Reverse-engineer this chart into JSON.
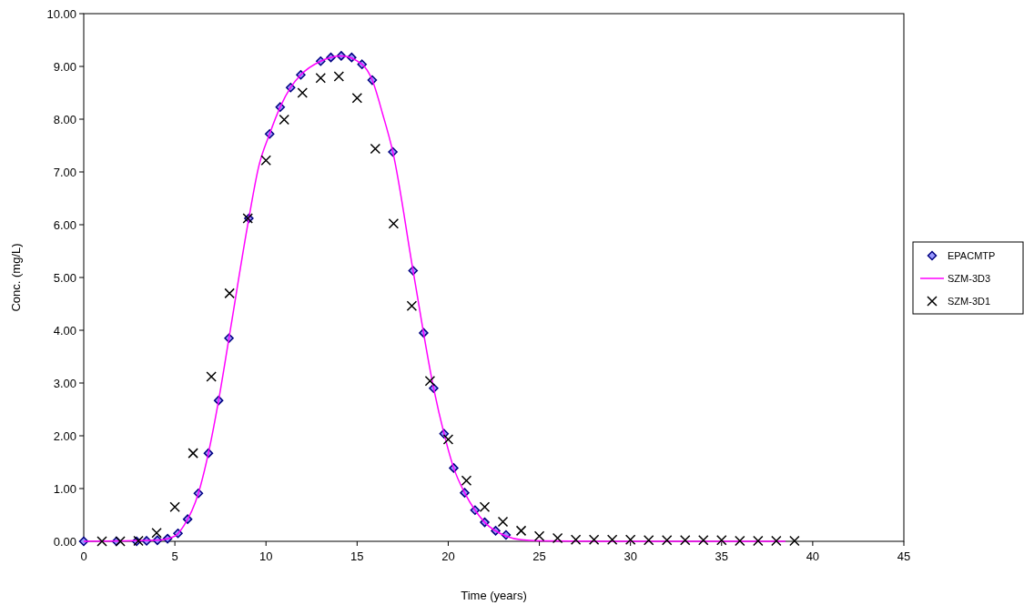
{
  "chart_data": {
    "type": "line",
    "xlabel": "Time (years)",
    "ylabel": "Conc. (mg/L)",
    "xlim": [
      0,
      45
    ],
    "xticks": [
      0,
      5,
      10,
      15,
      20,
      25,
      30,
      35,
      40,
      45
    ],
    "ylim": [
      0,
      10
    ],
    "yticks": [
      {
        "value": 0,
        "label": "0.00"
      },
      {
        "value": 1,
        "label": "1.00"
      },
      {
        "value": 2,
        "label": "2.00"
      },
      {
        "value": 3,
        "label": "3.00"
      },
      {
        "value": 4,
        "label": "4.00"
      },
      {
        "value": 5,
        "label": "5.00"
      },
      {
        "value": 6,
        "label": "6.00"
      },
      {
        "value": 7,
        "label": "7.00"
      },
      {
        "value": 8,
        "label": "8.00"
      },
      {
        "value": 9,
        "label": "9.00"
      },
      {
        "value": 10,
        "label": "10.00"
      }
    ],
    "grid": false,
    "legend": "right",
    "series": [
      {
        "name": "EPACMTP",
        "type": "scatter",
        "marker": "diamond",
        "color": "#000080",
        "x": [
          0,
          1.8,
          2.9,
          3.45,
          4.04,
          4.6,
          5.17,
          5.7,
          6.29,
          6.84,
          7.4,
          7.97,
          9.06,
          10.2,
          10.78,
          11.35,
          11.91,
          13.0,
          13.56,
          14.13,
          14.7,
          15.27,
          15.83,
          16.96,
          18.07,
          18.65,
          19.2,
          19.77,
          20.3,
          20.9,
          21.47,
          22.0,
          22.6,
          23.17
        ],
        "values": [
          0,
          0,
          0,
          0.01,
          0.02,
          0.05,
          0.15,
          0.42,
          0.91,
          1.67,
          2.67,
          3.85,
          6.12,
          7.72,
          8.23,
          8.6,
          8.84,
          9.1,
          9.17,
          9.2,
          9.17,
          9.04,
          8.74,
          7.38,
          5.13,
          3.95,
          2.9,
          2.04,
          1.39,
          0.92,
          0.59,
          0.36,
          0.2,
          0.12
        ]
      },
      {
        "name": "SZM-3D3",
        "type": "line",
        "marker": "none",
        "color": "#ff00ff",
        "x": [
          0,
          4,
          5,
          5.5,
          6.29,
          6.84,
          7.4,
          7.97,
          9.06,
          9.6,
          10.2,
          10.78,
          11.35,
          11.91,
          13.0,
          14.13,
          15.27,
          15.83,
          16.4,
          16.96,
          18.07,
          19.2,
          19.77,
          20.3,
          20.9,
          21.47,
          22.0,
          23.17,
          24,
          25,
          30,
          38.5
        ],
        "values": [
          0,
          0.02,
          0.1,
          0.3,
          0.91,
          1.67,
          2.67,
          3.85,
          6.12,
          7.1,
          7.72,
          8.23,
          8.6,
          8.84,
          9.1,
          9.2,
          9.04,
          8.74,
          8.1,
          7.38,
          5.13,
          2.9,
          2.04,
          1.39,
          0.92,
          0.59,
          0.36,
          0.1,
          0.03,
          0.01,
          0,
          0
        ]
      },
      {
        "name": "SZM-3D1",
        "type": "scatter",
        "marker": "cross",
        "color": "#000000",
        "x": [
          1,
          2,
          3,
          4,
          5,
          6,
          7,
          8,
          9,
          10,
          11,
          12,
          13,
          14,
          15,
          16,
          17,
          18,
          19,
          20,
          21,
          22,
          23,
          24,
          25,
          26,
          27,
          28,
          29,
          30,
          31,
          32,
          33,
          34,
          35,
          36,
          37,
          38,
          39
        ],
        "values": [
          0,
          0,
          0.01,
          0.16,
          0.65,
          1.67,
          3.12,
          4.7,
          6.12,
          7.22,
          7.99,
          8.5,
          8.78,
          8.81,
          8.4,
          7.44,
          6.02,
          4.46,
          3.04,
          1.93,
          1.15,
          0.65,
          0.37,
          0.2,
          0.1,
          0.06,
          0.03,
          0.03,
          0.03,
          0.03,
          0.02,
          0.02,
          0.02,
          0.02,
          0.02,
          0.01,
          0.01,
          0.01,
          0.01
        ]
      }
    ]
  }
}
